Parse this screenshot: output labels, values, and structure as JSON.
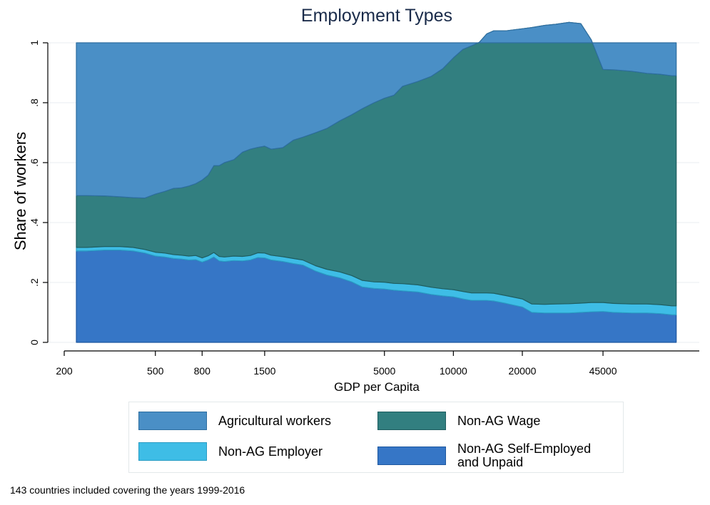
{
  "chart_data": {
    "type": "area",
    "stacked": true,
    "title": "Employment Types",
    "xlabel": "GDP per Capita",
    "ylabel": "Share of workers",
    "x_scale": "log",
    "xlim": [
      200,
      100000
    ],
    "ylim": [
      0,
      1
    ],
    "x_ticks": [
      200,
      500,
      800,
      1500,
      5000,
      10000,
      20000,
      45000
    ],
    "y_ticks": [
      0,
      0.2,
      0.4,
      0.6,
      0.8,
      1
    ],
    "y_tick_labels": [
      "0",
      ".2",
      ".4",
      ".6",
      ".8",
      "1"
    ],
    "grid": "horizontal",
    "legend_position": "bottom",
    "x": [
      226,
      250,
      300,
      350,
      400,
      450,
      500,
      550,
      600,
      650,
      700,
      750,
      800,
      850,
      900,
      950,
      1000,
      1100,
      1200,
      1300,
      1400,
      1500,
      1600,
      1800,
      2000,
      2200,
      2500,
      2800,
      3200,
      3600,
      4000,
      4500,
      5000,
      5500,
      6000,
      7000,
      8000,
      9000,
      10000,
      11000,
      12000,
      13000,
      14000,
      15000,
      17000,
      20000,
      22000,
      25000,
      28000,
      32000,
      36000,
      40000,
      45000,
      50000,
      60000,
      70000,
      80000,
      90000,
      94000
    ],
    "series": [
      {
        "name": "Non-AG Self-Employed and Unpaid",
        "color": "#3676c6",
        "values": [
          0.305,
          0.305,
          0.308,
          0.308,
          0.305,
          0.298,
          0.288,
          0.285,
          0.28,
          0.278,
          0.275,
          0.276,
          0.268,
          0.275,
          0.285,
          0.272,
          0.27,
          0.273,
          0.272,
          0.275,
          0.283,
          0.282,
          0.275,
          0.27,
          0.263,
          0.258,
          0.238,
          0.225,
          0.215,
          0.202,
          0.185,
          0.18,
          0.178,
          0.174,
          0.172,
          0.168,
          0.16,
          0.155,
          0.152,
          0.145,
          0.14,
          0.14,
          0.14,
          0.138,
          0.13,
          0.118,
          0.1,
          0.098,
          0.098,
          0.098,
          0.1,
          0.102,
          0.103,
          0.1,
          0.098,
          0.098,
          0.096,
          0.092,
          0.092
        ]
      },
      {
        "name": "Non-AG Employer",
        "color": "#3ebde6",
        "values": [
          0.012,
          0.012,
          0.012,
          0.012,
          0.012,
          0.012,
          0.013,
          0.013,
          0.013,
          0.013,
          0.013,
          0.014,
          0.014,
          0.014,
          0.015,
          0.015,
          0.015,
          0.015,
          0.015,
          0.015,
          0.016,
          0.016,
          0.016,
          0.016,
          0.017,
          0.017,
          0.018,
          0.019,
          0.02,
          0.021,
          0.022,
          0.022,
          0.023,
          0.023,
          0.024,
          0.024,
          0.024,
          0.024,
          0.024,
          0.025,
          0.025,
          0.025,
          0.025,
          0.026,
          0.026,
          0.027,
          0.028,
          0.029,
          0.03,
          0.031,
          0.031,
          0.031,
          0.03,
          0.03,
          0.03,
          0.03,
          0.03,
          0.03,
          0.03
        ]
      },
      {
        "name": "Non-AG Wage",
        "color": "#327f80",
        "values": [
          0.173,
          0.173,
          0.169,
          0.166,
          0.166,
          0.172,
          0.194,
          0.206,
          0.221,
          0.225,
          0.234,
          0.24,
          0.26,
          0.269,
          0.29,
          0.303,
          0.315,
          0.322,
          0.348,
          0.355,
          0.352,
          0.357,
          0.354,
          0.364,
          0.395,
          0.41,
          0.444,
          0.47,
          0.505,
          0.537,
          0.573,
          0.598,
          0.614,
          0.628,
          0.659,
          0.679,
          0.704,
          0.735,
          0.774,
          0.808,
          0.825,
          0.837,
          0.865,
          0.876,
          0.884,
          0.902,
          0.923,
          0.931,
          0.934,
          0.939,
          0.933,
          0.877,
          0.778,
          0.78,
          0.777,
          0.77,
          0.769,
          0.768,
          0.768
        ]
      },
      {
        "name": "Agricultural workers",
        "color": "#4a8fc6",
        "values": [
          0.51,
          0.51,
          0.511,
          0.514,
          0.517,
          0.518,
          0.505,
          0.496,
          0.486,
          0.484,
          0.478,
          0.47,
          0.458,
          0.442,
          0.41,
          0.41,
          0.4,
          0.39,
          0.365,
          0.355,
          0.349,
          0.345,
          0.355,
          0.35,
          0.325,
          0.315,
          0.3,
          0.286,
          0.26,
          0.24,
          0.22,
          0.2,
          0.185,
          0.175,
          0.145,
          0.129,
          0.112,
          0.086,
          0.05,
          0.022,
          0.01,
          -0.002,
          -0.03,
          -0.04,
          -0.04,
          -0.047,
          -0.051,
          -0.058,
          -0.062,
          -0.068,
          -0.064,
          -0.01,
          0.089,
          0.09,
          0.095,
          0.102,
          0.105,
          0.11,
          0.11
        ]
      }
    ]
  },
  "legend": {
    "items": [
      {
        "label": "Agricultural workers",
        "color": "#4a8fc6",
        "border": "#2e6ea0"
      },
      {
        "label": "Non-AG Wage",
        "color": "#327f80",
        "border": "#1f5e60"
      },
      {
        "label": "Non-AG Employer",
        "color": "#3ebde6",
        "border": "#2a9cc4"
      },
      {
        "label": "Non-AG Self-Employed\nand Unpaid",
        "color": "#3676c6",
        "border": "#1f58a0"
      }
    ]
  },
  "note": "143 countries included covering the years 1999-2016"
}
